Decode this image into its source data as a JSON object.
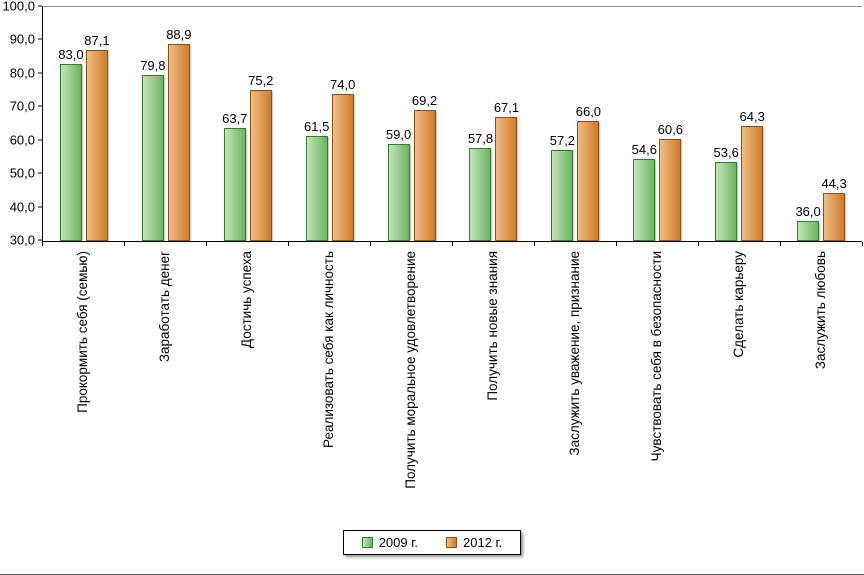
{
  "chart_data": {
    "type": "bar",
    "title": "",
    "xlabel": "",
    "ylabel": "",
    "grid": false,
    "legend_position": "bottom",
    "value_labels": true,
    "value_label_format": "comma-decimal",
    "ylim": [
      30,
      100
    ],
    "ytick_step": 10,
    "ytick_labels": [
      "100,0",
      "90,0",
      "80,0",
      "70,0",
      "60,0",
      "50,0",
      "40,0",
      "30,0"
    ],
    "categories": [
      "Прокормить себя (семью)",
      "Заработать денег",
      "Достичь успеха",
      "Реализовать себя как личность",
      "Получить моральное удовлетворение",
      "Получить новые знания",
      "Заслужить уважение, признание",
      "Чувствовать себя в безопасности",
      "Сделать карьеру",
      "Заслужить любовь"
    ],
    "series": [
      {
        "name": "2009 г.",
        "fill_light": "#c3e4ba",
        "fill_dark": "#6db45f",
        "border": "#2f7e2f",
        "values": [
          83.0,
          79.8,
          63.7,
          61.5,
          59.0,
          57.8,
          57.2,
          54.6,
          53.6,
          36.0
        ]
      },
      {
        "name": "2012 г.",
        "fill_light": "#f0bd85",
        "fill_dark": "#cd7c2a",
        "border": "#8e4e15",
        "values": [
          87.1,
          88.9,
          75.2,
          74.0,
          69.2,
          67.1,
          66.0,
          60.6,
          64.3,
          44.3
        ]
      }
    ]
  }
}
